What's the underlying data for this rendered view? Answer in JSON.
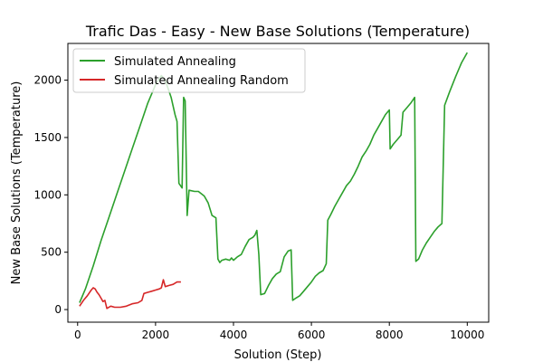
{
  "chart_data": {
    "type": "line",
    "title": "Trafic Das - Easy - New Base Solutions (Temperature)",
    "xlabel": "Solution (Step)",
    "ylabel": "New Base Solutions (Temperature)",
    "xlim": [
      -250,
      10550
    ],
    "ylim": [
      -110,
      2320
    ],
    "xticks": [
      0,
      2000,
      4000,
      6000,
      8000,
      10000
    ],
    "yticks": [
      0,
      500,
      1000,
      1500,
      2000
    ],
    "grid": false,
    "legend_position": "upper-left",
    "series": [
      {
        "name": "Simulated Annealing",
        "color": "#2ca02c",
        "points": [
          [
            50,
            60
          ],
          [
            200,
            180
          ],
          [
            400,
            380
          ],
          [
            600,
            600
          ],
          [
            800,
            800
          ],
          [
            1000,
            1000
          ],
          [
            1200,
            1200
          ],
          [
            1400,
            1400
          ],
          [
            1600,
            1600
          ],
          [
            1800,
            1800
          ],
          [
            2000,
            1960
          ],
          [
            2150,
            2040
          ],
          [
            2250,
            2000
          ],
          [
            2400,
            1850
          ],
          [
            2500,
            1700
          ],
          [
            2550,
            1640
          ],
          [
            2600,
            1100
          ],
          [
            2680,
            1060
          ],
          [
            2720,
            1850
          ],
          [
            2760,
            1820
          ],
          [
            2810,
            820
          ],
          [
            2860,
            1040
          ],
          [
            3000,
            1030
          ],
          [
            3100,
            1030
          ],
          [
            3250,
            990
          ],
          [
            3350,
            930
          ],
          [
            3450,
            820
          ],
          [
            3550,
            800
          ],
          [
            3600,
            440
          ],
          [
            3650,
            410
          ],
          [
            3700,
            430
          ],
          [
            3800,
            440
          ],
          [
            3900,
            430
          ],
          [
            3950,
            450
          ],
          [
            4000,
            430
          ],
          [
            4100,
            460
          ],
          [
            4200,
            480
          ],
          [
            4300,
            550
          ],
          [
            4400,
            610
          ],
          [
            4500,
            630
          ],
          [
            4550,
            650
          ],
          [
            4600,
            690
          ],
          [
            4650,
            480
          ],
          [
            4700,
            130
          ],
          [
            4800,
            140
          ],
          [
            4900,
            210
          ],
          [
            5000,
            270
          ],
          [
            5100,
            310
          ],
          [
            5200,
            330
          ],
          [
            5300,
            460
          ],
          [
            5400,
            510
          ],
          [
            5480,
            520
          ],
          [
            5520,
            80
          ],
          [
            5600,
            100
          ],
          [
            5700,
            120
          ],
          [
            5800,
            160
          ],
          [
            5900,
            200
          ],
          [
            6000,
            240
          ],
          [
            6100,
            290
          ],
          [
            6200,
            320
          ],
          [
            6300,
            340
          ],
          [
            6380,
            400
          ],
          [
            6420,
            780
          ],
          [
            6500,
            830
          ],
          [
            6600,
            900
          ],
          [
            6700,
            960
          ],
          [
            6800,
            1020
          ],
          [
            6900,
            1080
          ],
          [
            7000,
            1120
          ],
          [
            7100,
            1180
          ],
          [
            7200,
            1250
          ],
          [
            7300,
            1330
          ],
          [
            7400,
            1380
          ],
          [
            7500,
            1440
          ],
          [
            7600,
            1520
          ],
          [
            7700,
            1580
          ],
          [
            7800,
            1640
          ],
          [
            7900,
            1700
          ],
          [
            8000,
            1740
          ],
          [
            8020,
            1400
          ],
          [
            8100,
            1440
          ],
          [
            8200,
            1480
          ],
          [
            8300,
            1520
          ],
          [
            8350,
            1720
          ],
          [
            8450,
            1760
          ],
          [
            8550,
            1800
          ],
          [
            8650,
            1850
          ],
          [
            8680,
            420
          ],
          [
            8750,
            440
          ],
          [
            8850,
            520
          ],
          [
            8950,
            580
          ],
          [
            9050,
            630
          ],
          [
            9150,
            680
          ],
          [
            9250,
            720
          ],
          [
            9350,
            750
          ],
          [
            9420,
            1780
          ],
          [
            9550,
            1900
          ],
          [
            9700,
            2030
          ],
          [
            9850,
            2150
          ],
          [
            10000,
            2240
          ]
        ]
      },
      {
        "name": "Simulated Annealing Random",
        "color": "#d62728",
        "points": [
          [
            50,
            30
          ],
          [
            150,
            80
          ],
          [
            250,
            120
          ],
          [
            350,
            170
          ],
          [
            400,
            190
          ],
          [
            450,
            180
          ],
          [
            500,
            150
          ],
          [
            550,
            130
          ],
          [
            600,
            100
          ],
          [
            650,
            70
          ],
          [
            700,
            80
          ],
          [
            750,
            10
          ],
          [
            850,
            30
          ],
          [
            950,
            20
          ],
          [
            1100,
            20
          ],
          [
            1250,
            30
          ],
          [
            1400,
            50
          ],
          [
            1550,
            60
          ],
          [
            1650,
            80
          ],
          [
            1700,
            140
          ],
          [
            1800,
            150
          ],
          [
            1900,
            160
          ],
          [
            2000,
            170
          ],
          [
            2100,
            180
          ],
          [
            2150,
            190
          ],
          [
            2200,
            260
          ],
          [
            2250,
            200
          ],
          [
            2350,
            210
          ],
          [
            2450,
            220
          ],
          [
            2550,
            240
          ],
          [
            2650,
            240
          ]
        ]
      }
    ]
  }
}
